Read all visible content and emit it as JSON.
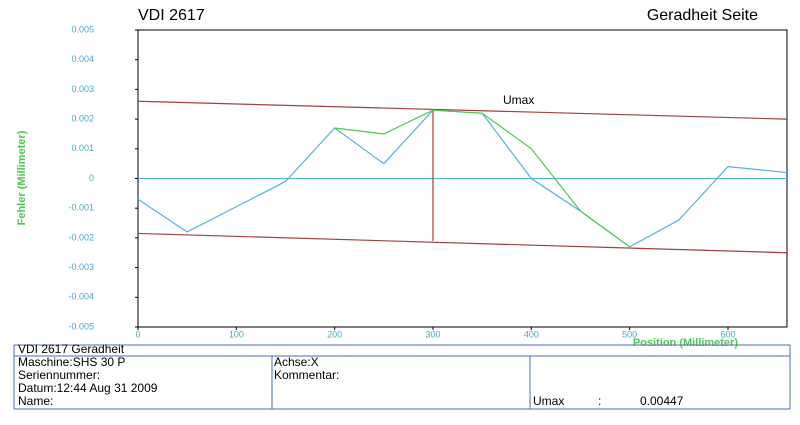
{
  "chart_data": {
    "type": "line",
    "title": "VDI 2617",
    "subtitle": "Geradheit Seite",
    "x_label": "Position (Millimeter)",
    "y_label": "Fehler (Millimeter)",
    "x": [
      0,
      50,
      150,
      200,
      250,
      300,
      350,
      400,
      450,
      500,
      550,
      600,
      660
    ],
    "series": [
      {
        "color": "#4fb3d9",
        "values": [
          -0.0007,
          -0.0018,
          -0.0001,
          0.0017,
          0.0005,
          0.0023,
          0.0022,
          0.0,
          -0.0011,
          -0.0023,
          -0.0014,
          0.0004,
          0.0002
        ]
      },
      {
        "color": "#4ec94e",
        "values": [
          null,
          null,
          null,
          0.0017,
          0.0015,
          0.0023,
          0.0022,
          0.001,
          -0.0011,
          -0.0023,
          null,
          null,
          null
        ]
      }
    ],
    "reference_lines": [
      {
        "color": "#a04040",
        "x": [
          0,
          660
        ],
        "values": [
          0.0026,
          0.002
        ]
      },
      {
        "color": "#a04040",
        "x": [
          0,
          660
        ],
        "values": [
          -0.00185,
          -0.0025
        ]
      },
      {
        "color": "#a04040",
        "x": [
          300,
          300
        ],
        "values": [
          0.0023,
          -0.0021
        ]
      }
    ],
    "annotation": "Umax",
    "zero_line_color": "#4fb3d9",
    "xlim": [
      0,
      660
    ],
    "ylim": [
      -0.005,
      0.005
    ],
    "xticks": [
      0,
      100,
      200,
      300,
      400,
      500,
      600
    ],
    "yticks": [
      -0.005,
      -0.004,
      -0.003,
      -0.002,
      -0.001,
      0,
      0.001,
      0.002,
      0.003,
      0.004,
      0.005
    ]
  },
  "info": {
    "heading": "VDI 2617 Geradheit",
    "machine": "Maschine:SHS 30 P",
    "serial": "Seriennummer:",
    "date": "Datum:12:44 Aug 31 2009",
    "name": "Name:",
    "axis": "Achse:X",
    "comment": "Kommentar:",
    "umax_label": "Umax",
    "colon": ":",
    "umax_value": "0.00447"
  }
}
